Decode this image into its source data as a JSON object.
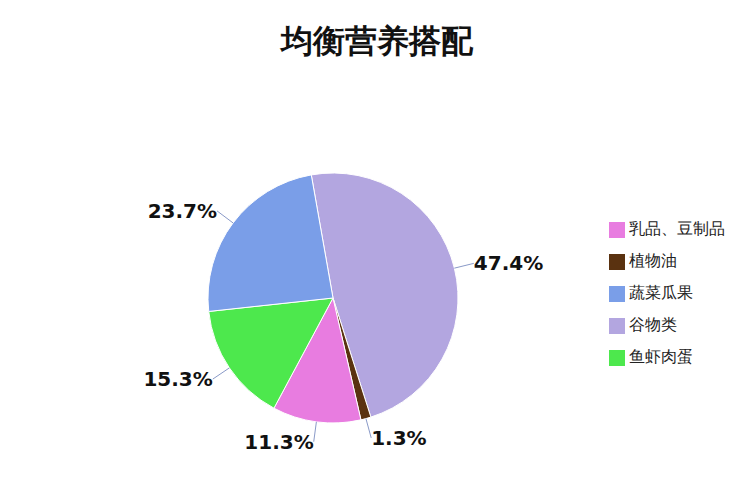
{
  "chart_data": {
    "type": "pie",
    "title": "均衡营养搭配",
    "categories": [
      "谷物类",
      "植物油",
      "乳品、豆制品",
      "鱼虾肉蛋",
      "蔬菜瓜果"
    ],
    "values": [
      47.4,
      1.3,
      11.3,
      15.3,
      23.7
    ],
    "value_labels": [
      "47.4%",
      "1.3%",
      "11.3%",
      "15.3%",
      "23.7%"
    ],
    "colors": [
      "#b3a6e0",
      "#5a3210",
      "#e87ce0",
      "#4de84d",
      "#7a9ee8"
    ],
    "legend": "right",
    "data_labels": true
  }
}
